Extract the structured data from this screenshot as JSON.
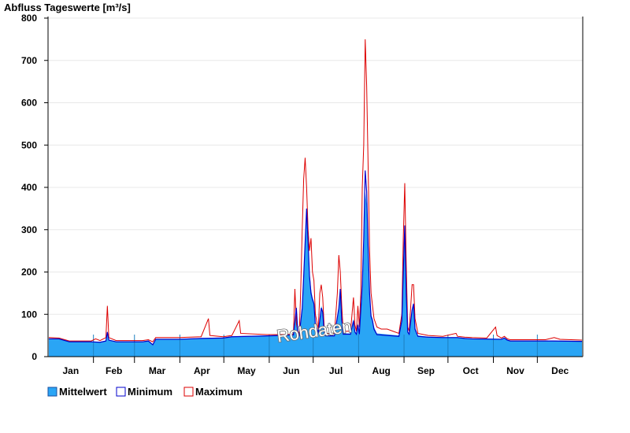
{
  "chart_data": {
    "type": "area",
    "title": "Abfluss Tageswerte [m³/s]",
    "ylim": [
      0,
      800
    ],
    "yticks": [
      0,
      100,
      200,
      300,
      400,
      500,
      600,
      700,
      800
    ],
    "months": [
      "Jan",
      "Feb",
      "Mar",
      "Apr",
      "May",
      "Jun",
      "Jul",
      "Aug",
      "Sep",
      "Oct",
      "Nov",
      "Dec"
    ],
    "watermark": "Rohdaten",
    "grid": true,
    "legend_position": "bottom-left",
    "colors": {
      "mean": "#2aa5f5",
      "minimum": "#0000cc",
      "maximum": "#dd0000"
    },
    "series": [
      {
        "name": "Mittelwert",
        "key": "mean",
        "points": [
          [
            1,
            43
          ],
          [
            8,
            43
          ],
          [
            15,
            36
          ],
          [
            30,
            36
          ],
          [
            36,
            35
          ],
          [
            40,
            38
          ],
          [
            41,
            60
          ],
          [
            42,
            40
          ],
          [
            47,
            36
          ],
          [
            65,
            36
          ],
          [
            69,
            38
          ],
          [
            72,
            30
          ],
          [
            74,
            42
          ],
          [
            90,
            42
          ],
          [
            105,
            44
          ],
          [
            120,
            45
          ],
          [
            126,
            48
          ],
          [
            150,
            50
          ],
          [
            160,
            51
          ],
          [
            168,
            52
          ],
          [
            170,
            120
          ],
          [
            171,
            60
          ],
          [
            172,
            52
          ],
          [
            174,
            120
          ],
          [
            175,
            200
          ],
          [
            176,
            280
          ],
          [
            177,
            330
          ],
          [
            178,
            280
          ],
          [
            179,
            200
          ],
          [
            180,
            160
          ],
          [
            181,
            140
          ],
          [
            182,
            130
          ],
          [
            183,
            80
          ],
          [
            185,
            60
          ],
          [
            187,
            120
          ],
          [
            188,
            110
          ],
          [
            189,
            60
          ],
          [
            190,
            50
          ],
          [
            196,
            50
          ],
          [
            199,
            120
          ],
          [
            200,
            160
          ],
          [
            201,
            90
          ],
          [
            202,
            55
          ],
          [
            207,
            55
          ],
          [
            209,
            90
          ],
          [
            210,
            60
          ],
          [
            211,
            55
          ],
          [
            212,
            80
          ],
          [
            213,
            55
          ],
          [
            214,
            110
          ],
          [
            215,
            150
          ],
          [
            216,
            250
          ],
          [
            217,
            390
          ],
          [
            218,
            360
          ],
          [
            219,
            250
          ],
          [
            220,
            150
          ],
          [
            221,
            100
          ],
          [
            222,
            90
          ],
          [
            223,
            70
          ],
          [
            225,
            55
          ],
          [
            240,
            50
          ],
          [
            242,
            90
          ],
          [
            243,
            190
          ],
          [
            244,
            280
          ],
          [
            245,
            150
          ],
          [
            246,
            60
          ],
          [
            247,
            55
          ],
          [
            249,
            110
          ],
          [
            250,
            120
          ],
          [
            251,
            70
          ],
          [
            253,
            50
          ],
          [
            260,
            47
          ],
          [
            270,
            46
          ],
          [
            280,
            46
          ],
          [
            285,
            44
          ],
          [
            290,
            43
          ],
          [
            310,
            42
          ],
          [
            312,
            45
          ],
          [
            314,
            40
          ],
          [
            316,
            38
          ],
          [
            330,
            38
          ],
          [
            345,
            38
          ],
          [
            365,
            37
          ]
        ]
      },
      {
        "name": "Minimum",
        "key": "minimum",
        "points": [
          [
            1,
            42
          ],
          [
            8,
            42
          ],
          [
            15,
            35
          ],
          [
            30,
            35
          ],
          [
            36,
            34
          ],
          [
            40,
            37
          ],
          [
            41,
            58
          ],
          [
            42,
            39
          ],
          [
            47,
            35
          ],
          [
            65,
            35
          ],
          [
            69,
            37
          ],
          [
            72,
            28
          ],
          [
            74,
            41
          ],
          [
            90,
            41
          ],
          [
            105,
            43
          ],
          [
            120,
            44
          ],
          [
            126,
            47
          ],
          [
            150,
            49
          ],
          [
            160,
            50
          ],
          [
            168,
            51
          ],
          [
            170,
            115
          ],
          [
            171,
            58
          ],
          [
            172,
            51
          ],
          [
            174,
            115
          ],
          [
            175,
            190
          ],
          [
            176,
            270
          ],
          [
            177,
            350
          ],
          [
            178,
            270
          ],
          [
            179,
            190
          ],
          [
            180,
            150
          ],
          [
            181,
            135
          ],
          [
            182,
            125
          ],
          [
            183,
            75
          ],
          [
            185,
            58
          ],
          [
            187,
            115
          ],
          [
            188,
            105
          ],
          [
            189,
            58
          ],
          [
            190,
            49
          ],
          [
            196,
            49
          ],
          [
            199,
            115
          ],
          [
            200,
            160
          ],
          [
            201,
            85
          ],
          [
            202,
            53
          ],
          [
            207,
            53
          ],
          [
            209,
            85
          ],
          [
            210,
            58
          ],
          [
            211,
            53
          ],
          [
            212,
            75
          ],
          [
            213,
            53
          ],
          [
            214,
            110
          ],
          [
            215,
            170
          ],
          [
            216,
            280
          ],
          [
            217,
            440
          ],
          [
            218,
            390
          ],
          [
            219,
            260
          ],
          [
            220,
            150
          ],
          [
            221,
            95
          ],
          [
            222,
            85
          ],
          [
            223,
            65
          ],
          [
            225,
            52
          ],
          [
            240,
            48
          ],
          [
            242,
            85
          ],
          [
            243,
            200
          ],
          [
            244,
            310
          ],
          [
            245,
            150
          ],
          [
            246,
            58
          ],
          [
            247,
            53
          ],
          [
            249,
            110
          ],
          [
            250,
            125
          ],
          [
            251,
            65
          ],
          [
            253,
            48
          ],
          [
            260,
            46
          ],
          [
            270,
            45
          ],
          [
            280,
            45
          ],
          [
            285,
            43
          ],
          [
            290,
            42
          ],
          [
            310,
            41
          ],
          [
            312,
            44
          ],
          [
            314,
            39
          ],
          [
            316,
            37
          ],
          [
            330,
            37
          ],
          [
            345,
            37
          ],
          [
            365,
            36
          ]
        ]
      },
      {
        "name": "Maximum",
        "key": "maximum",
        "points": [
          [
            1,
            45
          ],
          [
            8,
            44
          ],
          [
            15,
            37
          ],
          [
            30,
            37
          ],
          [
            33,
            42
          ],
          [
            36,
            38
          ],
          [
            40,
            45
          ],
          [
            41,
            120
          ],
          [
            42,
            45
          ],
          [
            47,
            38
          ],
          [
            65,
            38
          ],
          [
            69,
            40
          ],
          [
            72,
            35
          ],
          [
            74,
            45
          ],
          [
            90,
            45
          ],
          [
            105,
            47
          ],
          [
            110,
            90
          ],
          [
            111,
            50
          ],
          [
            120,
            47
          ],
          [
            126,
            50
          ],
          [
            131,
            85
          ],
          [
            132,
            55
          ],
          [
            150,
            52
          ],
          [
            160,
            52
          ],
          [
            168,
            53
          ],
          [
            169,
            160
          ],
          [
            170,
            80
          ],
          [
            171,
            60
          ],
          [
            172,
            55
          ],
          [
            173,
            160
          ],
          [
            174,
            300
          ],
          [
            175,
            420
          ],
          [
            176,
            470
          ],
          [
            177,
            400
          ],
          [
            178,
            300
          ],
          [
            179,
            250
          ],
          [
            180,
            280
          ],
          [
            181,
            200
          ],
          [
            182,
            180
          ],
          [
            183,
            100
          ],
          [
            185,
            65
          ],
          [
            186,
            150
          ],
          [
            187,
            170
          ],
          [
            188,
            140
          ],
          [
            189,
            70
          ],
          [
            190,
            55
          ],
          [
            196,
            55
          ],
          [
            198,
            150
          ],
          [
            199,
            240
          ],
          [
            200,
            200
          ],
          [
            201,
            120
          ],
          [
            202,
            60
          ],
          [
            207,
            60
          ],
          [
            208,
            100
          ],
          [
            209,
            140
          ],
          [
            210,
            75
          ],
          [
            211,
            60
          ],
          [
            212,
            120
          ],
          [
            213,
            70
          ],
          [
            214,
            150
          ],
          [
            215,
            400
          ],
          [
            216,
            500
          ],
          [
            217,
            750
          ],
          [
            218,
            640
          ],
          [
            219,
            450
          ],
          [
            220,
            250
          ],
          [
            221,
            150
          ],
          [
            222,
            120
          ],
          [
            223,
            90
          ],
          [
            225,
            70
          ],
          [
            228,
            65
          ],
          [
            232,
            65
          ],
          [
            236,
            60
          ],
          [
            240,
            55
          ],
          [
            242,
            100
          ],
          [
            243,
            280
          ],
          [
            244,
            410
          ],
          [
            245,
            220
          ],
          [
            246,
            70
          ],
          [
            247,
            60
          ],
          [
            249,
            170
          ],
          [
            250,
            170
          ],
          [
            251,
            90
          ],
          [
            253,
            55
          ],
          [
            260,
            50
          ],
          [
            270,
            48
          ],
          [
            279,
            55
          ],
          [
            280,
            48
          ],
          [
            285,
            46
          ],
          [
            290,
            45
          ],
          [
            300,
            44
          ],
          [
            306,
            70
          ],
          [
            307,
            50
          ],
          [
            310,
            44
          ],
          [
            312,
            48
          ],
          [
            314,
            42
          ],
          [
            316,
            40
          ],
          [
            330,
            40
          ],
          [
            340,
            40
          ],
          [
            346,
            45
          ],
          [
            350,
            41
          ],
          [
            365,
            39
          ]
        ]
      }
    ]
  }
}
